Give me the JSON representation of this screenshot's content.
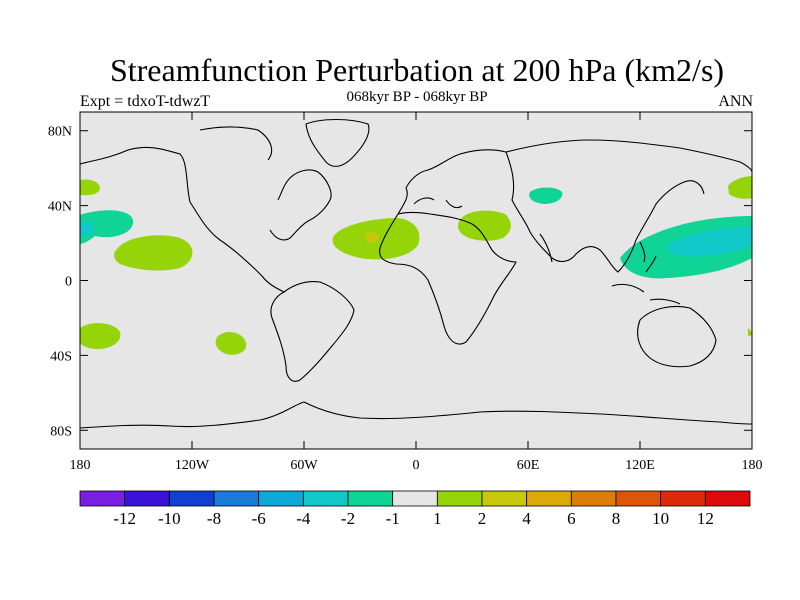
{
  "title": "Streamfunction Perturbation at 200 hPa (km2/s)",
  "subtitle": "068kyr BP - 068kyr BP",
  "left_label": "Expt = tdxoT-tdwzT",
  "right_label": "ANN",
  "axes": {
    "lon_ticks": [
      "180",
      "120W",
      "60W",
      "0",
      "60E",
      "120E",
      "180"
    ],
    "lat_ticks": [
      "80N",
      "40N",
      "0",
      "40S",
      "80S"
    ]
  },
  "colors": {
    "background_fill": "#e6e6e6",
    "coastline": "#000000"
  },
  "colorbar": {
    "labels": [
      "-12",
      "-10",
      "-8",
      "-6",
      "-4",
      "-2",
      "-1",
      "1",
      "2",
      "4",
      "6",
      "8",
      "10",
      "12"
    ],
    "colors": [
      "#7a1fe0",
      "#3a12d8",
      "#1040d0",
      "#1a7cd8",
      "#10a8d6",
      "#10c8c8",
      "#10d496",
      "#e6e6e6",
      "#96d40a",
      "#c8c80a",
      "#dca80a",
      "#dc7c0a",
      "#dc560a",
      "#dc2a0a",
      "#dc0a0a"
    ]
  },
  "chart_data": {
    "type": "heatmap",
    "title": "Streamfunction Perturbation at 200 hPa (km2/s)",
    "subtitle": "068kyr BP - 068kyr BP",
    "lon_range": [
      -180,
      180
    ],
    "lat_range": [
      -90,
      90
    ],
    "anomalies": [
      {
        "lon": -175,
        "lat": 50,
        "class": "1 to 2",
        "color": "#96d40a"
      },
      {
        "lon": -177,
        "lat": 28,
        "class": "-2 to -1",
        "color": "#10d496"
      },
      {
        "lon": -130,
        "lat": 15,
        "class": "1 to 2",
        "color": "#96d40a"
      },
      {
        "lon": -170,
        "lat": -30,
        "class": "1 to 2",
        "color": "#96d40a"
      },
      {
        "lon": -95,
        "lat": -33,
        "class": "1 to 2",
        "color": "#96d40a"
      },
      {
        "lon": -20,
        "lat": 22,
        "class": "1 to 2",
        "color": "#96d40a"
      },
      {
        "lon": -22,
        "lat": 23,
        "class": "2 to 4",
        "color": "#c8c80a"
      },
      {
        "lon": 37,
        "lat": 28,
        "class": "1 to 2",
        "color": "#96d40a"
      },
      {
        "lon": 70,
        "lat": 47,
        "class": "-2 to -1",
        "color": "#10d496"
      },
      {
        "lon": 175,
        "lat": 50,
        "class": "1 to 2",
        "color": "#96d40a"
      },
      {
        "lon": 145,
        "lat": 20,
        "class": "-2 to -1",
        "color": "#10d496"
      },
      {
        "lon": 155,
        "lat": 23,
        "class": "-4 to -2",
        "color": "#10c8c8"
      }
    ]
  }
}
